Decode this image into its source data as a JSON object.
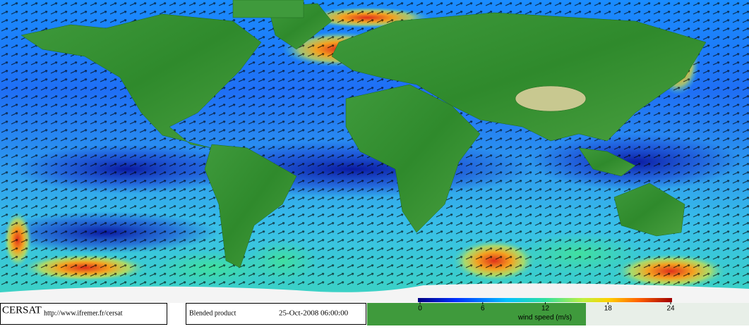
{
  "logo": "CERSAT",
  "url": "http://www.ifremer.fr/cersat",
  "product": "Blended product",
  "timestamp": "25-Oct-2008 06:00:00",
  "colorbar": {
    "label": "wind speed (m/s)",
    "lim": [
      0,
      24
    ],
    "ticks": [
      0,
      6,
      12,
      18,
      24
    ]
  }
}
